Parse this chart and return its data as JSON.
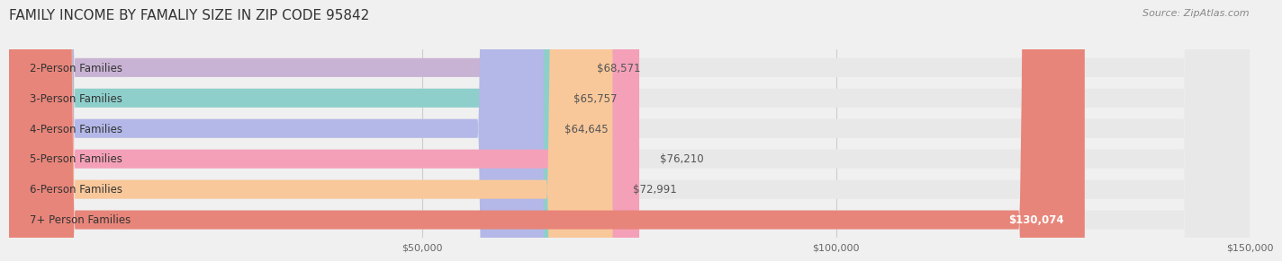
{
  "title": "FAMILY INCOME BY FAMALIY SIZE IN ZIP CODE 95842",
  "source": "Source: ZipAtlas.com",
  "categories": [
    "2-Person Families",
    "3-Person Families",
    "4-Person Families",
    "5-Person Families",
    "6-Person Families",
    "7+ Person Families"
  ],
  "values": [
    68571,
    65757,
    64645,
    76210,
    72991,
    130074
  ],
  "bar_colors": [
    "#c9b3d4",
    "#8ecfcc",
    "#b3b8e8",
    "#f4a0b8",
    "#f9c89a",
    "#e8857a"
  ],
  "value_labels": [
    "$68,571",
    "$65,757",
    "$64,645",
    "$76,210",
    "$72,991",
    "$130,074"
  ],
  "xlim": [
    0,
    150000
  ],
  "xticks": [
    50000,
    100000,
    150000
  ],
  "xtick_labels": [
    "$50,000",
    "$100,000",
    "$150,000"
  ],
  "background_color": "#f0f0f0",
  "bar_bg_color": "#e8e8e8",
  "bar_height": 0.62,
  "title_fontsize": 11,
  "label_fontsize": 8.5,
  "value_fontsize": 8.5,
  "source_fontsize": 8
}
